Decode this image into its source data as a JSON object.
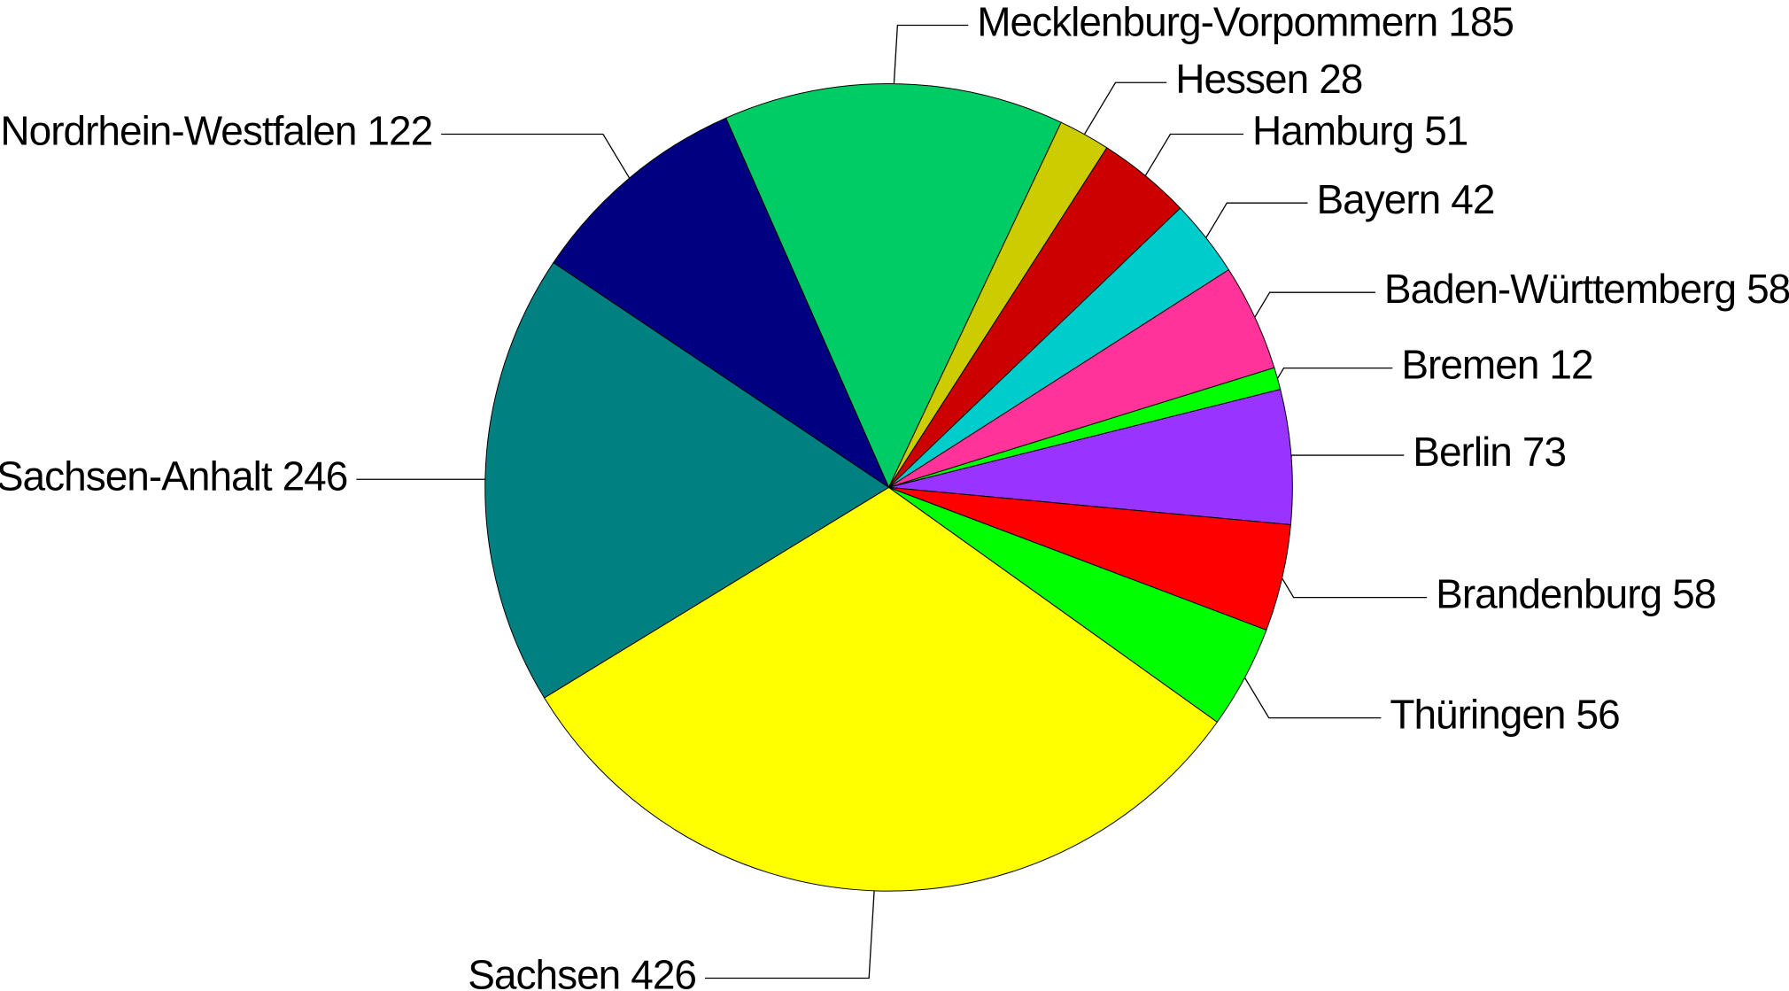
{
  "chart_data": {
    "type": "pie",
    "categories": [
      "Mecklenburg-Vorpommern",
      "Hessen",
      "Hamburg",
      "Bayern",
      "Baden-Württemberg",
      "Bremen",
      "Berlin",
      "Brandenburg",
      "Thüringen",
      "Sachsen",
      "Sachsen-Anhalt",
      "Nordrhein-Westfalen"
    ],
    "values": [
      185,
      28,
      51,
      42,
      58,
      12,
      73,
      58,
      56,
      426,
      246,
      122
    ],
    "colors": [
      "#00cc66",
      "#cccc00",
      "#cc0000",
      "#00cccc",
      "#ff3399",
      "#00ff00",
      "#9933ff",
      "#ff0000",
      "#00ff00",
      "#ffff00",
      "#008080",
      "#000080"
    ]
  }
}
